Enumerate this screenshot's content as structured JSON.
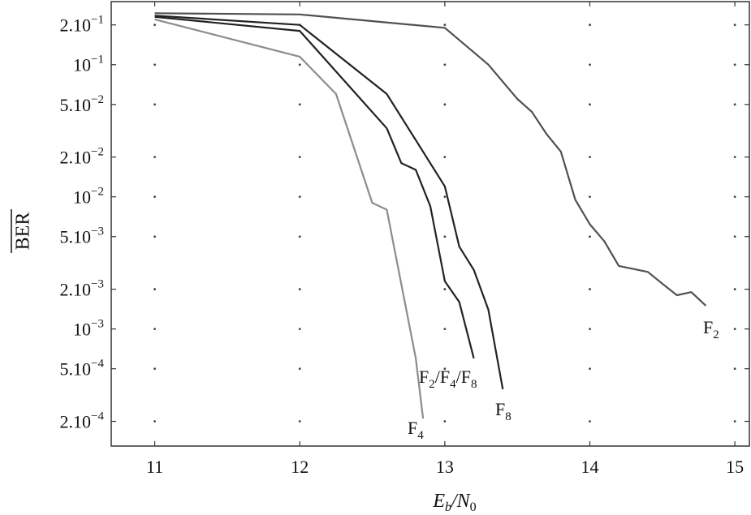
{
  "chart_data": {
    "type": "line",
    "title": "",
    "xlabel": "E_b/N_0",
    "xlabel_parts": {
      "e": "E",
      "b": "b",
      "slash": "/N",
      "zero": "0"
    },
    "ylabel": "BER",
    "xlim": [
      10.7,
      15.1
    ],
    "ylim": [
      0.00013,
      0.3
    ],
    "y_scale": "log",
    "grid": "dotted",
    "x_ticks": [
      {
        "value": 11,
        "label": "11"
      },
      {
        "value": 12,
        "label": "12"
      },
      {
        "value": 13,
        "label": "13"
      },
      {
        "value": 14,
        "label": "14"
      },
      {
        "value": 15,
        "label": "15"
      }
    ],
    "y_ticks": [
      {
        "value": 0.2,
        "base": "2.10",
        "exp": "−1"
      },
      {
        "value": 0.1,
        "base": "10",
        "exp": "−1"
      },
      {
        "value": 0.05,
        "base": "5.10",
        "exp": "−2"
      },
      {
        "value": 0.02,
        "base": "2.10",
        "exp": "−2"
      },
      {
        "value": 0.01,
        "base": "10",
        "exp": "−2"
      },
      {
        "value": 0.005,
        "base": "5.10",
        "exp": "−3"
      },
      {
        "value": 0.002,
        "base": "2.10",
        "exp": "−3"
      },
      {
        "value": 0.001,
        "base": "10",
        "exp": "−3"
      },
      {
        "value": 0.0005,
        "base": "5.10",
        "exp": "−4"
      },
      {
        "value": 0.0002,
        "base": "2.10",
        "exp": "−4"
      }
    ],
    "series": [
      {
        "label_main": "F",
        "label_sub": "2",
        "color": "#505050",
        "x": [
          11,
          12,
          13,
          13.3,
          13.5,
          13.6,
          13.7,
          13.8,
          13.9,
          14.0,
          14.1,
          14.2,
          14.4,
          14.5,
          14.6,
          14.7,
          14.8
        ],
        "y": [
          0.245,
          0.24,
          0.19,
          0.1,
          0.055,
          0.044,
          0.03,
          0.022,
          0.0095,
          0.0062,
          0.0046,
          0.003,
          0.0027,
          0.0022,
          0.0018,
          0.0019,
          0.0015
        ]
      },
      {
        "label_main": "F",
        "label_sub": "4",
        "color": "#8c8c8c",
        "x": [
          11,
          12,
          12.25,
          12.5,
          12.6,
          12.8,
          12.85
        ],
        "y": [
          0.22,
          0.115,
          0.06,
          0.009,
          0.008,
          0.0006,
          0.00021
        ]
      },
      {
        "label_main": "F",
        "label_sub": "8",
        "color": "#222222",
        "x": [
          11,
          12,
          12.6,
          13,
          13.1,
          13.2,
          13.3,
          13.4
        ],
        "y": [
          0.235,
          0.2,
          0.06,
          0.012,
          0.0042,
          0.0028,
          0.0014,
          0.00035
        ]
      },
      {
        "label_main": "F",
        "label_sub": "2",
        "label_extra": [
          {
            "main": "/F",
            "sub": "4"
          },
          {
            "main": "/F",
            "sub": "8"
          }
        ],
        "color": "#222222",
        "x": [
          11,
          12,
          12.6,
          12.7,
          12.8,
          12.9,
          13,
          13.1,
          13.2
        ],
        "y": [
          0.23,
          0.18,
          0.033,
          0.018,
          0.016,
          0.0085,
          0.0023,
          0.0016,
          0.0006
        ]
      }
    ]
  }
}
